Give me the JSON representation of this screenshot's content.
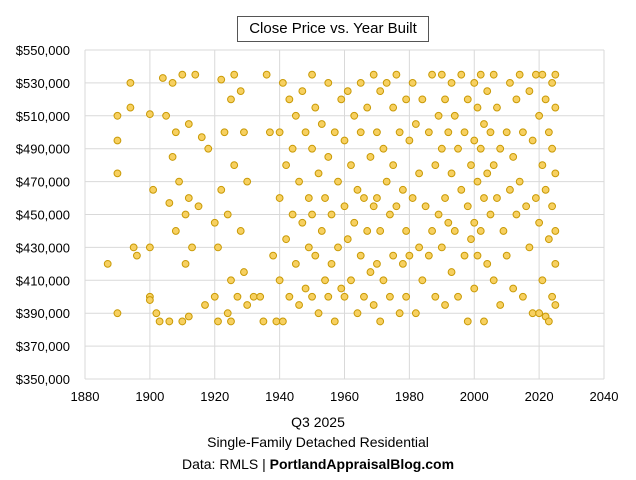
{
  "chart_data": {
    "type": "scatter",
    "title": "Close Price vs. Year Built",
    "xlabel": "Q3 2025",
    "subtitle": "Single-Family Detached Residential",
    "source_prefix": "Data: RMLS | ",
    "source_site": "PortlandAppraisalBlog.com",
    "xlim": [
      1880,
      2040
    ],
    "ylim": [
      350000,
      550000
    ],
    "x_ticks": [
      "1880",
      "1900",
      "1920",
      "1940",
      "1960",
      "1980",
      "2000",
      "2020",
      "2040"
    ],
    "y_ticks": [
      "$350,000",
      "$370,000",
      "$390,000",
      "$410,000",
      "$430,000",
      "$450,000",
      "$470,000",
      "$490,000",
      "$510,000",
      "$530,000",
      "$550,000"
    ],
    "grid": true,
    "marker_fill": "#f7d060",
    "marker_stroke": "#c99a06",
    "points": [
      [
        1887,
        420000
      ],
      [
        1890,
        390000
      ],
      [
        1890,
        475000
      ],
      [
        1890,
        495000
      ],
      [
        1890,
        510000
      ],
      [
        1894,
        530000
      ],
      [
        1894,
        515000
      ],
      [
        1895,
        430000
      ],
      [
        1896,
        425000
      ],
      [
        1900,
        400000
      ],
      [
        1900,
        398000
      ],
      [
        1900,
        430000
      ],
      [
        1900,
        511000
      ],
      [
        1901,
        465000
      ],
      [
        1902,
        390000
      ],
      [
        1903,
        385000
      ],
      [
        1904,
        533000
      ],
      [
        1905,
        510000
      ],
      [
        1906,
        457000
      ],
      [
        1906,
        385000
      ],
      [
        1907,
        485000
      ],
      [
        1907,
        530000
      ],
      [
        1908,
        500000
      ],
      [
        1908,
        440000
      ],
      [
        1909,
        470000
      ],
      [
        1910,
        535000
      ],
      [
        1910,
        385000
      ],
      [
        1911,
        450000
      ],
      [
        1911,
        420000
      ],
      [
        1912,
        505000
      ],
      [
        1912,
        460000
      ],
      [
        1912,
        388000
      ],
      [
        1913,
        430000
      ],
      [
        1914,
        535000
      ],
      [
        1915,
        455000
      ],
      [
        1916,
        497000
      ],
      [
        1917,
        395000
      ],
      [
        1918,
        490000
      ],
      [
        1920,
        400000
      ],
      [
        1920,
        445000
      ],
      [
        1921,
        385000
      ],
      [
        1921,
        430000
      ],
      [
        1922,
        532000
      ],
      [
        1922,
        465000
      ],
      [
        1923,
        500000
      ],
      [
        1924,
        390000
      ],
      [
        1924,
        450000
      ],
      [
        1925,
        520000
      ],
      [
        1925,
        410000
      ],
      [
        1925,
        385000
      ],
      [
        1926,
        535000
      ],
      [
        1926,
        480000
      ],
      [
        1927,
        400000
      ],
      [
        1928,
        525000
      ],
      [
        1928,
        440000
      ],
      [
        1929,
        500000
      ],
      [
        1929,
        415000
      ],
      [
        1930,
        470000
      ],
      [
        1930,
        395000
      ],
      [
        1932,
        400000
      ],
      [
        1934,
        400000
      ],
      [
        1935,
        385000
      ],
      [
        1936,
        535000
      ],
      [
        1937,
        500000
      ],
      [
        1938,
        425000
      ],
      [
        1939,
        385000
      ],
      [
        1940,
        500000
      ],
      [
        1940,
        460000
      ],
      [
        1940,
        410000
      ],
      [
        1941,
        530000
      ],
      [
        1941,
        385000
      ],
      [
        1942,
        480000
      ],
      [
        1942,
        435000
      ],
      [
        1943,
        520000
      ],
      [
        1943,
        400000
      ],
      [
        1944,
        490000
      ],
      [
        1944,
        450000
      ],
      [
        1945,
        510000
      ],
      [
        1945,
        420000
      ],
      [
        1946,
        470000
      ],
      [
        1946,
        395000
      ],
      [
        1947,
        525000
      ],
      [
        1947,
        445000
      ],
      [
        1948,
        500000
      ],
      [
        1948,
        405000
      ],
      [
        1949,
        460000
      ],
      [
        1949,
        430000
      ],
      [
        1950,
        535000
      ],
      [
        1950,
        490000
      ],
      [
        1950,
        450000
      ],
      [
        1950,
        400000
      ],
      [
        1951,
        515000
      ],
      [
        1951,
        425000
      ],
      [
        1952,
        475000
      ],
      [
        1952,
        390000
      ],
      [
        1953,
        505000
      ],
      [
        1953,
        440000
      ],
      [
        1954,
        460000
      ],
      [
        1954,
        410000
      ],
      [
        1955,
        530000
      ],
      [
        1955,
        485000
      ],
      [
        1955,
        400000
      ],
      [
        1956,
        450000
      ],
      [
        1956,
        420000
      ],
      [
        1957,
        500000
      ],
      [
        1957,
        385000
      ],
      [
        1958,
        470000
      ],
      [
        1958,
        430000
      ],
      [
        1959,
        520000
      ],
      [
        1959,
        405000
      ],
      [
        1960,
        495000
      ],
      [
        1960,
        455000
      ],
      [
        1960,
        400000
      ],
      [
        1961,
        525000
      ],
      [
        1961,
        435000
      ],
      [
        1962,
        480000
      ],
      [
        1962,
        410000
      ],
      [
        1963,
        510000
      ],
      [
        1963,
        445000
      ],
      [
        1964,
        465000
      ],
      [
        1964,
        390000
      ],
      [
        1965,
        530000
      ],
      [
        1965,
        500000
      ],
      [
        1965,
        425000
      ],
      [
        1966,
        460000
      ],
      [
        1966,
        400000
      ],
      [
        1967,
        515000
      ],
      [
        1967,
        440000
      ],
      [
        1968,
        485000
      ],
      [
        1968,
        415000
      ],
      [
        1969,
        535000
      ],
      [
        1969,
        455000
      ],
      [
        1969,
        395000
      ],
      [
        1970,
        500000
      ],
      [
        1970,
        460000
      ],
      [
        1970,
        420000
      ],
      [
        1971,
        525000
      ],
      [
        1971,
        440000
      ],
      [
        1971,
        385000
      ],
      [
        1972,
        490000
      ],
      [
        1972,
        410000
      ],
      [
        1973,
        530000
      ],
      [
        1973,
        470000
      ],
      [
        1974,
        450000
      ],
      [
        1974,
        400000
      ],
      [
        1975,
        515000
      ],
      [
        1975,
        480000
      ],
      [
        1975,
        425000
      ],
      [
        1976,
        535000
      ],
      [
        1976,
        455000
      ],
      [
        1977,
        500000
      ],
      [
        1977,
        390000
      ],
      [
        1978,
        465000
      ],
      [
        1978,
        420000
      ],
      [
        1979,
        520000
      ],
      [
        1979,
        440000
      ],
      [
        1979,
        400000
      ],
      [
        1980,
        495000
      ],
      [
        1980,
        425000
      ],
      [
        1981,
        530000
      ],
      [
        1981,
        460000
      ],
      [
        1982,
        505000
      ],
      [
        1982,
        390000
      ],
      [
        1983,
        475000
      ],
      [
        1983,
        430000
      ],
      [
        1984,
        520000
      ],
      [
        1984,
        410000
      ],
      [
        1985,
        455000
      ],
      [
        1986,
        500000
      ],
      [
        1986,
        425000
      ],
      [
        1987,
        535000
      ],
      [
        1987,
        440000
      ],
      [
        1988,
        480000
      ],
      [
        1988,
        400000
      ],
      [
        1989,
        510000
      ],
      [
        1989,
        450000
      ],
      [
        1990,
        535000
      ],
      [
        1990,
        490000
      ],
      [
        1990,
        430000
      ],
      [
        1991,
        520000
      ],
      [
        1991,
        460000
      ],
      [
        1991,
        395000
      ],
      [
        1992,
        500000
      ],
      [
        1992,
        445000
      ],
      [
        1993,
        530000
      ],
      [
        1993,
        475000
      ],
      [
        1993,
        415000
      ],
      [
        1994,
        510000
      ],
      [
        1994,
        440000
      ],
      [
        1995,
        490000
      ],
      [
        1995,
        400000
      ],
      [
        1996,
        535000
      ],
      [
        1996,
        465000
      ],
      [
        1997,
        500000
      ],
      [
        1997,
        425000
      ],
      [
        1998,
        520000
      ],
      [
        1998,
        455000
      ],
      [
        1998,
        385000
      ],
      [
        1999,
        480000
      ],
      [
        1999,
        435000
      ],
      [
        2000,
        530000
      ],
      [
        2000,
        495000
      ],
      [
        2000,
        445000
      ],
      [
        2000,
        405000
      ],
      [
        2001,
        515000
      ],
      [
        2001,
        470000
      ],
      [
        2001,
        425000
      ],
      [
        2002,
        535000
      ],
      [
        2002,
        490000
      ],
      [
        2002,
        440000
      ],
      [
        2003,
        505000
      ],
      [
        2003,
        460000
      ],
      [
        2003,
        385000
      ],
      [
        2004,
        525000
      ],
      [
        2004,
        475000
      ],
      [
        2004,
        420000
      ],
      [
        2005,
        500000
      ],
      [
        2005,
        450000
      ],
      [
        2006,
        535000
      ],
      [
        2006,
        480000
      ],
      [
        2006,
        410000
      ],
      [
        2007,
        515000
      ],
      [
        2007,
        460000
      ],
      [
        2008,
        490000
      ],
      [
        2008,
        395000
      ],
      [
        2009,
        440000
      ],
      [
        2010,
        500000
      ],
      [
        2010,
        425000
      ],
      [
        2011,
        530000
      ],
      [
        2011,
        465000
      ],
      [
        2012,
        485000
      ],
      [
        2012,
        405000
      ],
      [
        2013,
        520000
      ],
      [
        2013,
        450000
      ],
      [
        2014,
        535000
      ],
      [
        2014,
        470000
      ],
      [
        2015,
        500000
      ],
      [
        2015,
        400000
      ],
      [
        2016,
        455000
      ],
      [
        2017,
        525000
      ],
      [
        2017,
        430000
      ],
      [
        2018,
        495000
      ],
      [
        2018,
        390000
      ],
      [
        2019,
        535000
      ],
      [
        2019,
        460000
      ],
      [
        2020,
        510000
      ],
      [
        2020,
        445000
      ],
      [
        2020,
        390000
      ],
      [
        2021,
        535000
      ],
      [
        2021,
        480000
      ],
      [
        2021,
        410000
      ],
      [
        2022,
        520000
      ],
      [
        2022,
        465000
      ],
      [
        2022,
        388000
      ],
      [
        2023,
        500000
      ],
      [
        2023,
        435000
      ],
      [
        2023,
        385000
      ],
      [
        2024,
        530000
      ],
      [
        2024,
        490000
      ],
      [
        2024,
        455000
      ],
      [
        2024,
        400000
      ],
      [
        2025,
        535000
      ],
      [
        2025,
        515000
      ],
      [
        2025,
        475000
      ],
      [
        2025,
        440000
      ],
      [
        2025,
        420000
      ],
      [
        2025,
        395000
      ]
    ]
  }
}
